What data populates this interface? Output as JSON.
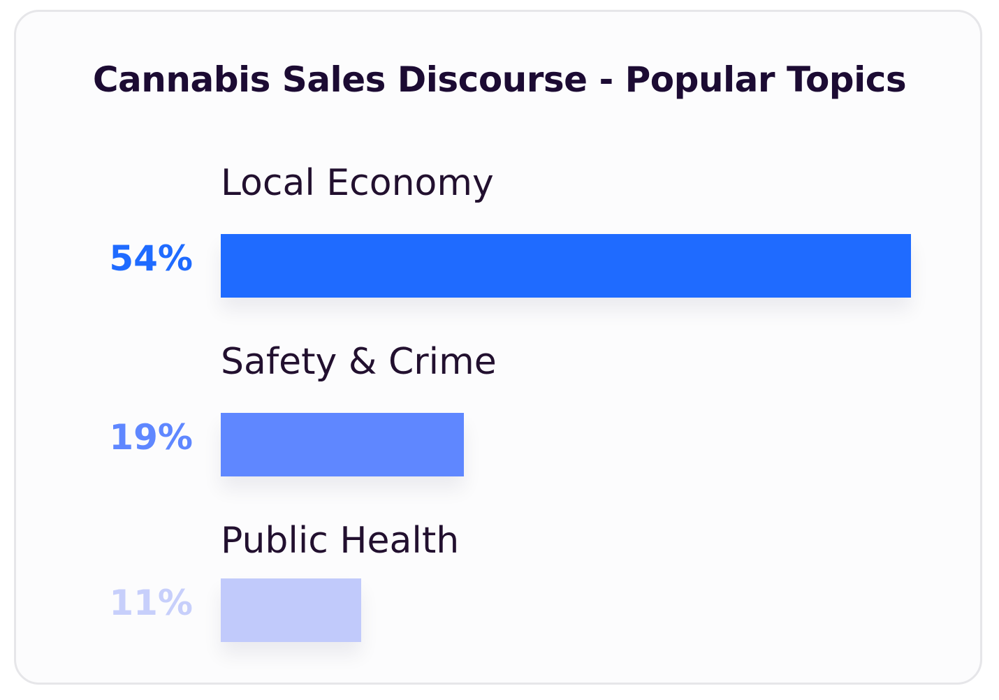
{
  "chart_data": {
    "type": "bar",
    "orientation": "horizontal",
    "title": "Cannabis Sales Discourse - Popular Topics",
    "categories": [
      "Local Economy",
      "Safety & Crime",
      "Public Health"
    ],
    "values": [
      54,
      19,
      11
    ],
    "value_labels": [
      "54%",
      "19%",
      "11%"
    ],
    "unit": "%",
    "colors": [
      "#1f6bff",
      "#5f87ff",
      "#c1cafb"
    ],
    "grid": false,
    "legend": "none"
  }
}
